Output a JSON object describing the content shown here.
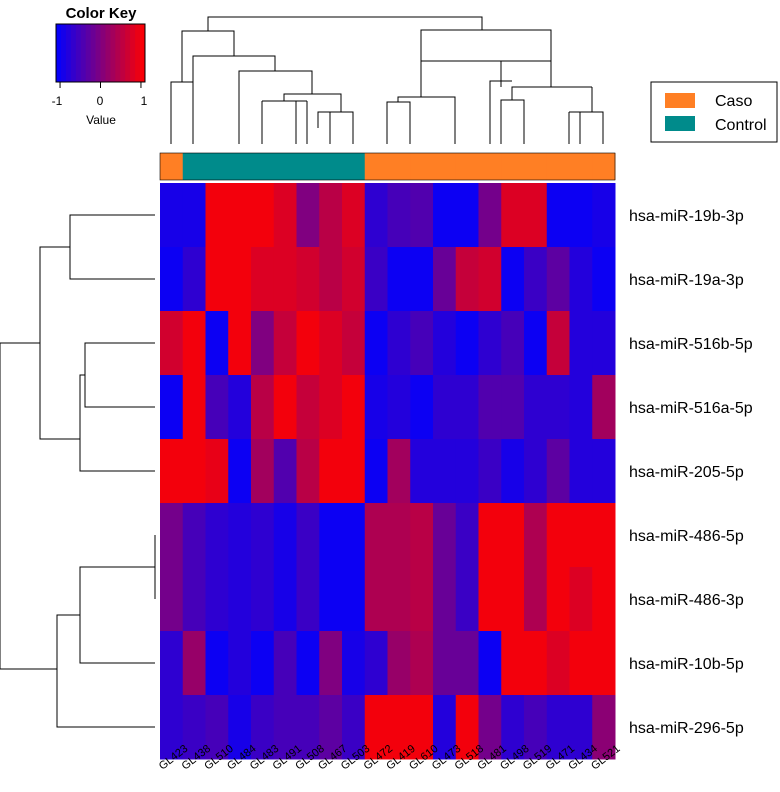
{
  "chart_data": {
    "type": "heatmap",
    "title": "",
    "color_key": {
      "title": "Color Key",
      "xlabel": "Value",
      "tick_labels": [
        "-1",
        "0",
        "1"
      ],
      "ticks": [
        -1,
        0,
        1
      ],
      "range": [
        -1.1,
        1.1
      ],
      "colors": [
        "#0000ff",
        "#ff0000"
      ]
    },
    "legend": {
      "position": "top-right",
      "entries": [
        {
          "label": "Caso",
          "color": "#ff7f24"
        },
        {
          "label": "Control",
          "color": "#008b8b"
        }
      ]
    },
    "columns": [
      "GL423",
      "GL438",
      "GL510",
      "GL484",
      "GL483",
      "GL491",
      "GL508",
      "GL467",
      "GL503",
      "GL472",
      "GL419",
      "GL610",
      "GL473",
      "GL518",
      "GL481",
      "GL498",
      "GL519",
      "GL471",
      "GL434",
      "GL521"
    ],
    "column_groups": [
      "Caso",
      "Control",
      "Control",
      "Control",
      "Control",
      "Control",
      "Control",
      "Control",
      "Control",
      "Caso",
      "Caso",
      "Caso",
      "Caso",
      "Caso",
      "Caso",
      "Caso",
      "Caso",
      "Caso",
      "Caso",
      "Caso"
    ],
    "rows": [
      "hsa-miR-19b-3p",
      "hsa-miR-19a-3p",
      "hsa-miR-516b-5p",
      "hsa-miR-516a-5p",
      "hsa-miR-205-5p",
      "hsa-miR-486-5p",
      "hsa-miR-486-3p",
      "hsa-miR-10b-5p",
      "hsa-miR-296-5p"
    ],
    "values": [
      [
        -0.9,
        -0.9,
        1.0,
        1.0,
        1.0,
        0.8,
        0.0,
        0.5,
        0.8,
        -0.7,
        -0.5,
        -0.4,
        -1.0,
        -1.0,
        -0.1,
        0.8,
        0.8,
        -1.0,
        -1.0,
        -0.9
      ],
      [
        -1.0,
        -0.7,
        1.0,
        1.0,
        0.8,
        0.8,
        0.7,
        0.5,
        0.7,
        -0.6,
        -1.0,
        -1.0,
        -0.2,
        0.6,
        0.7,
        -1.0,
        -0.6,
        -0.3,
        -0.8,
        -1.0
      ],
      [
        0.7,
        1.0,
        -1.0,
        1.0,
        0.0,
        0.6,
        1.0,
        0.8,
        0.6,
        -1.0,
        -0.7,
        -0.5,
        -0.8,
        -1.0,
        -0.7,
        -0.5,
        -1.0,
        0.6,
        -0.8,
        -0.8
      ],
      [
        -1.0,
        1.0,
        -0.5,
        -0.8,
        0.5,
        1.0,
        0.6,
        0.8,
        1.0,
        -0.9,
        -0.8,
        -1.0,
        -0.7,
        -0.7,
        -0.4,
        -0.4,
        -0.7,
        -0.7,
        -0.8,
        0.3
      ],
      [
        1.0,
        1.0,
        0.9,
        -1.0,
        0.3,
        -0.4,
        0.5,
        1.0,
        1.0,
        -1.0,
        0.3,
        -0.8,
        -0.8,
        -0.8,
        -0.6,
        -0.9,
        -0.7,
        -0.3,
        -0.8,
        -0.8
      ],
      [
        -0.1,
        -0.5,
        -0.7,
        -0.8,
        -0.7,
        -0.9,
        -0.6,
        -1.0,
        -1.0,
        0.4,
        0.4,
        0.5,
        -0.2,
        -0.6,
        1.0,
        1.0,
        0.4,
        1.0,
        1.0,
        1.0
      ],
      [
        -0.1,
        -0.5,
        -0.7,
        -0.8,
        -0.7,
        -0.9,
        -0.6,
        -1.0,
        -1.0,
        0.4,
        0.4,
        0.5,
        -0.2,
        -0.6,
        1.0,
        1.0,
        0.4,
        1.0,
        0.8,
        1.0
      ],
      [
        -0.7,
        0.2,
        -1.0,
        -0.8,
        -1.0,
        -0.5,
        -1.0,
        0.0,
        -0.9,
        -0.7,
        0.2,
        0.4,
        -0.2,
        -0.2,
        -1.0,
        1.0,
        1.0,
        0.8,
        1.0,
        1.0
      ],
      [
        -0.7,
        -0.6,
        -0.5,
        -0.9,
        -0.6,
        -0.5,
        -0.5,
        -0.3,
        -0.6,
        1.0,
        1.0,
        1.0,
        -0.8,
        1.0,
        -0.1,
        -0.7,
        -0.5,
        -0.7,
        -0.7,
        0.1
      ]
    ]
  }
}
